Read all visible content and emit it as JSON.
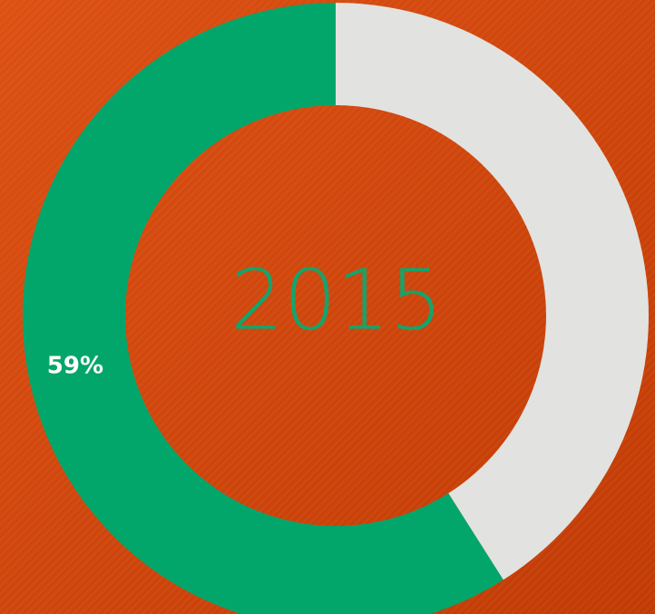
{
  "chart_data": {
    "type": "donut",
    "values": [
      59,
      41
    ],
    "value_labels": [
      "59%",
      null
    ],
    "colors": [
      "#03a66a",
      "#e2e2e0"
    ],
    "center_text": "2015",
    "direction": "counterclockwise"
  }
}
